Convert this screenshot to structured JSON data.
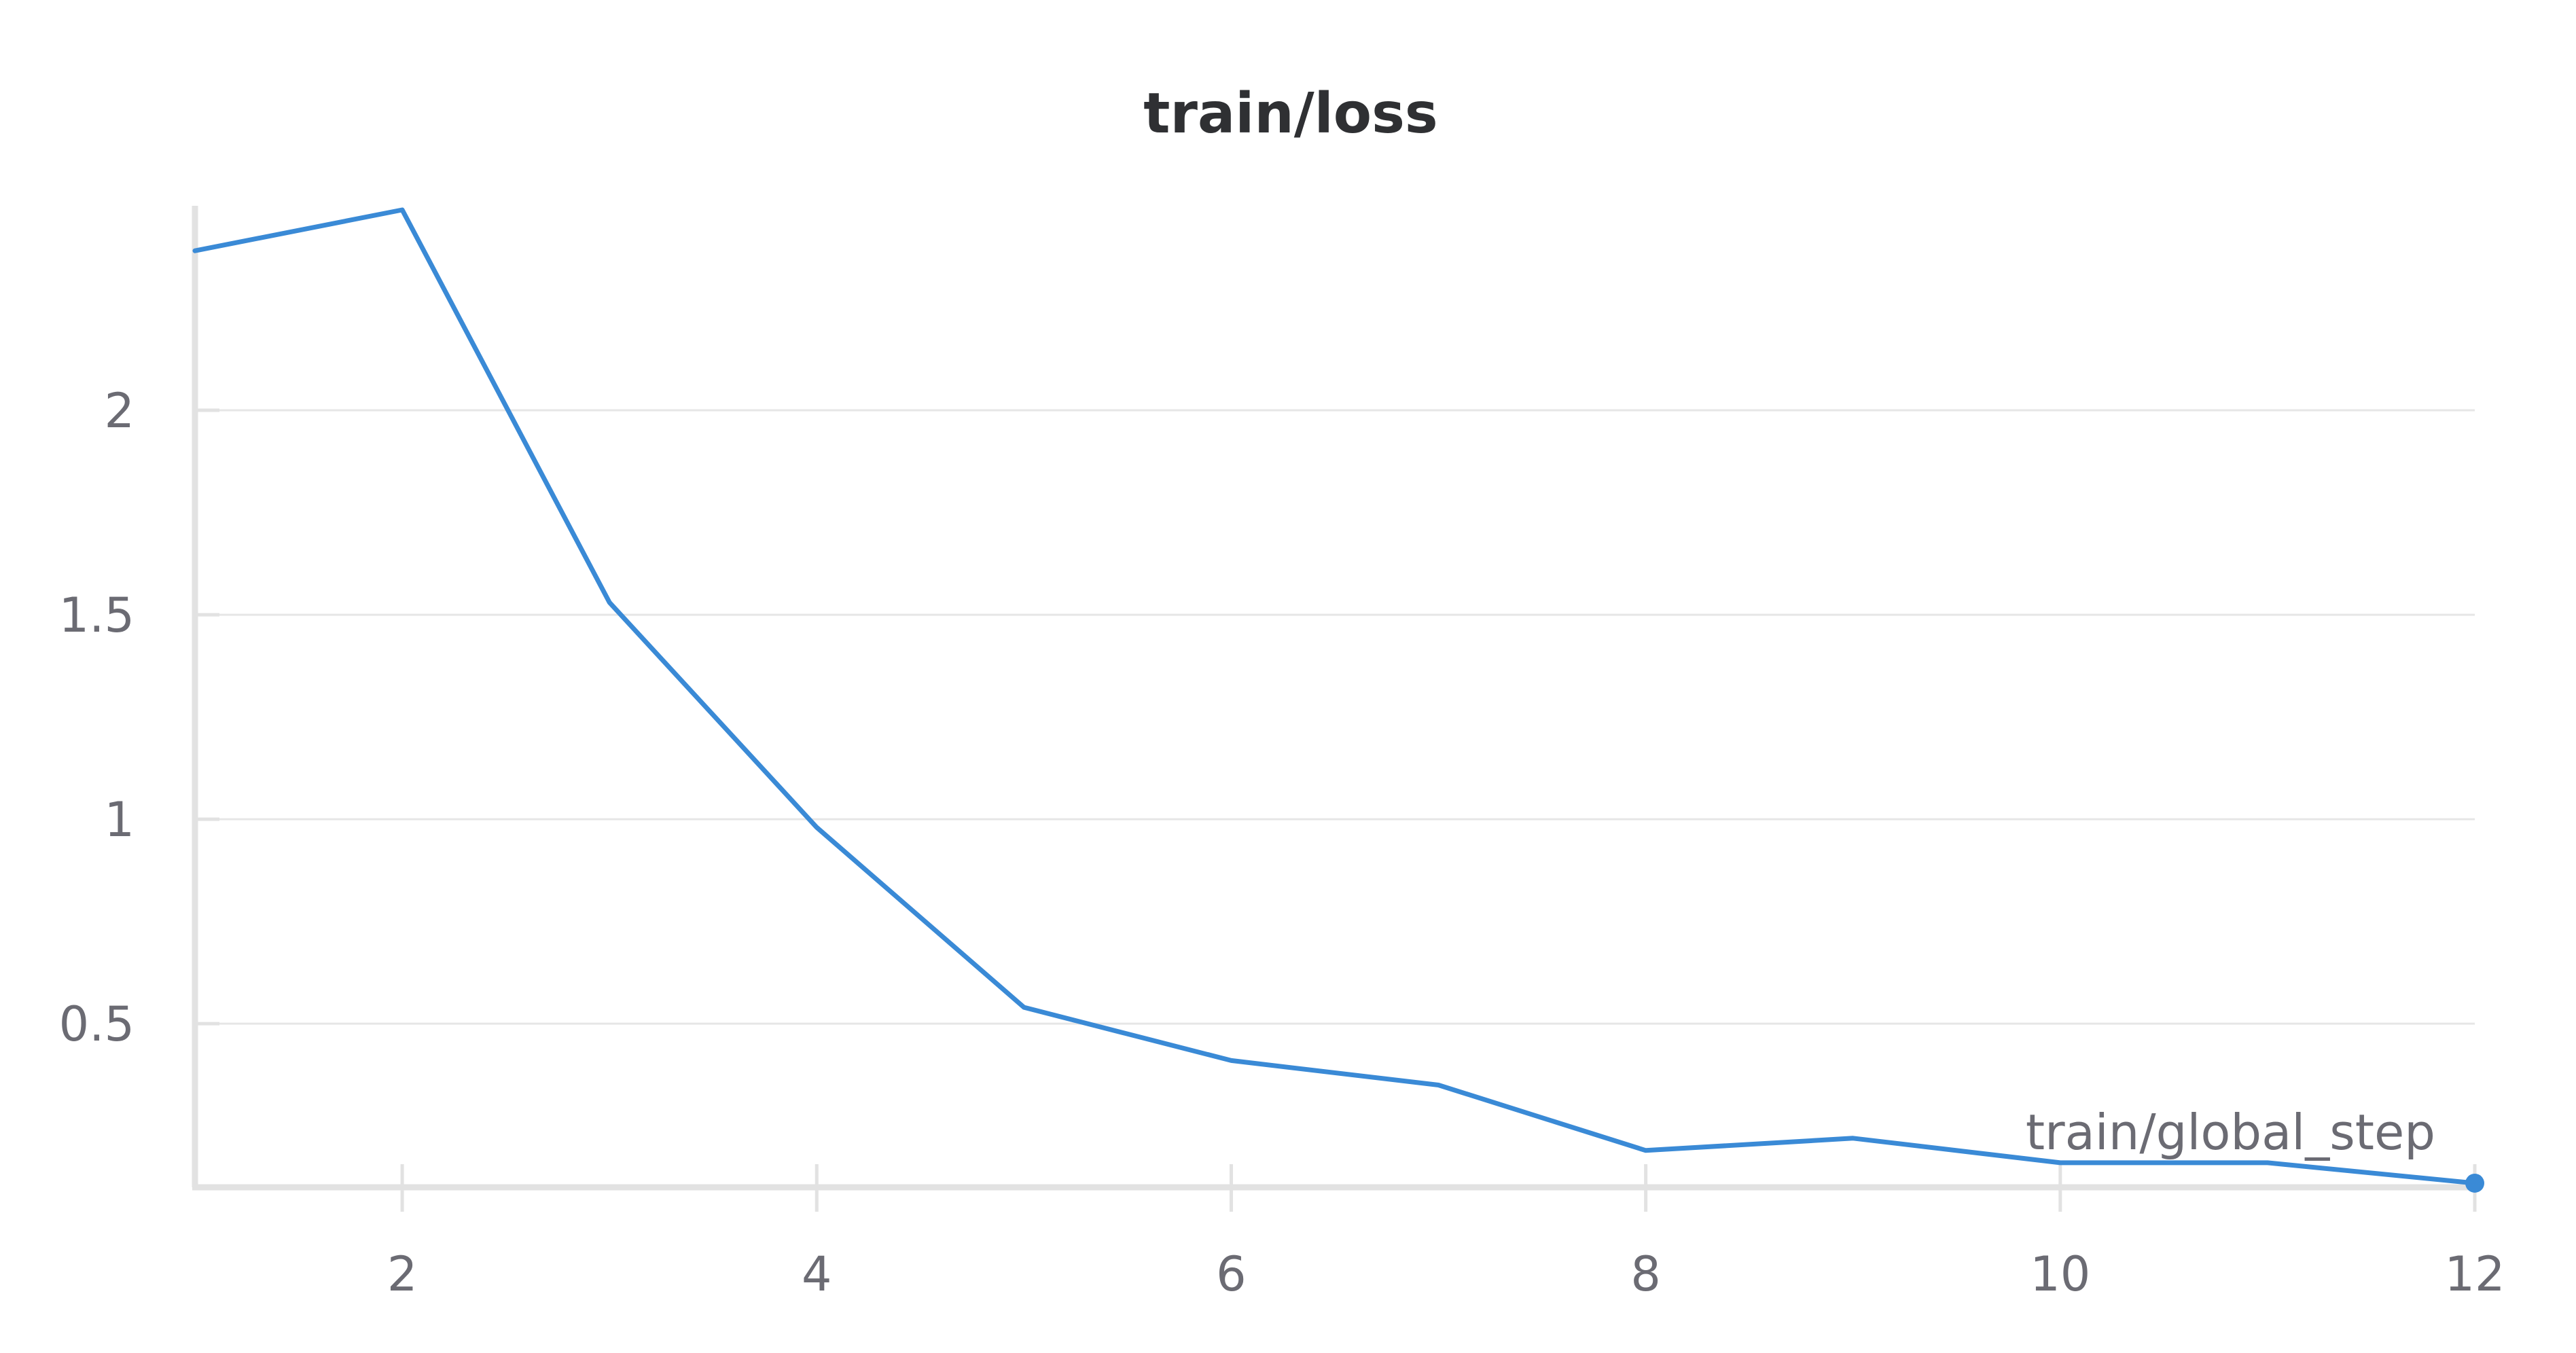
{
  "chart_data": {
    "type": "line",
    "title": "train/loss",
    "xlabel": "train/global_step",
    "ylabel": "",
    "xlim": [
      1,
      12
    ],
    "ylim": [
      0.1,
      2.5
    ],
    "xticks": [
      2,
      4,
      6,
      8,
      10,
      12
    ],
    "xtick_labels": [
      "2",
      "4",
      "6",
      "8",
      "10",
      "12"
    ],
    "yticks": [
      0.5,
      1,
      1.5,
      2
    ],
    "ytick_labels": [
      "0.5",
      "1",
      "1.5",
      "2"
    ],
    "grid": true,
    "legend": "none",
    "series": [
      {
        "color": "#3a8ad6",
        "x": [
          1,
          2,
          3,
          4,
          5,
          6,
          7,
          8,
          9,
          10,
          11,
          12
        ],
        "y": [
          2.39,
          2.49,
          1.53,
          0.98,
          0.54,
          0.41,
          0.35,
          0.19,
          0.22,
          0.16,
          0.16,
          0.11
        ]
      }
    ]
  }
}
